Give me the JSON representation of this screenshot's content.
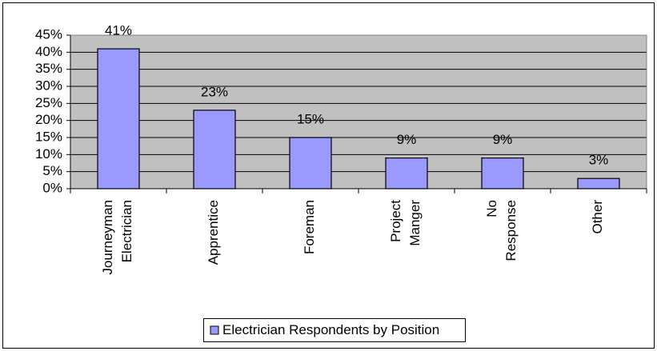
{
  "chart_data": {
    "type": "bar",
    "categories": [
      "Journeyman Electrician",
      "Apprentice",
      "Foreman",
      "Project Manger",
      "No Response",
      "Other"
    ],
    "series": [
      {
        "name": "Electrician Respondents by Position",
        "color": "#9999ff",
        "values": [
          41,
          23,
          15,
          9,
          9,
          3
        ],
        "value_labels": [
          "41%",
          "23%",
          "15%",
          "9%",
          "9%",
          "3%"
        ]
      }
    ],
    "ylim": [
      0,
      45
    ],
    "yticks": [
      {
        "value": 0,
        "label": "0%"
      },
      {
        "value": 5,
        "label": "5%"
      },
      {
        "value": 10,
        "label": "10%"
      },
      {
        "value": 15,
        "label": "15%"
      },
      {
        "value": 20,
        "label": "20%"
      },
      {
        "value": 25,
        "label": "25%"
      },
      {
        "value": 30,
        "label": "30%"
      },
      {
        "value": 35,
        "label": "35%"
      },
      {
        "value": 40,
        "label": "40%"
      },
      {
        "value": 45,
        "label": "45%"
      }
    ],
    "grid": true,
    "plot_background": "#c0c0c0",
    "legend": "bottom"
  }
}
